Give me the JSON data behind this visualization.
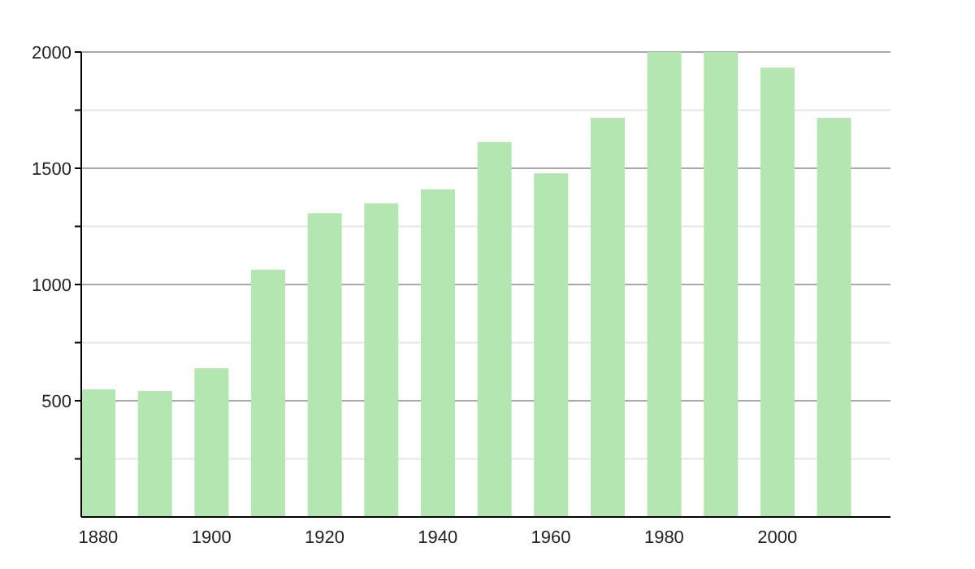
{
  "chart_data": {
    "type": "bar",
    "x": [
      1880,
      1890,
      1900,
      1910,
      1920,
      1930,
      1940,
      1950,
      1960,
      1970,
      1980,
      1990,
      2000,
      2010
    ],
    "values": [
      549,
      542,
      640,
      1064,
      1307,
      1349,
      1409,
      1613,
      1478,
      1717,
      2000,
      2000,
      1933,
      1717
    ],
    "color": "#b3e6b0",
    "xlim": [
      1877,
      2020
    ],
    "xticks": [
      1880,
      1900,
      1920,
      1940,
      1960,
      1980,
      2000
    ],
    "ylim": [
      0,
      2000
    ],
    "yticks": [
      {
        "value": 250,
        "label": null
      },
      500,
      {
        "value": 750,
        "label": null
      },
      1000,
      {
        "value": 1250,
        "label": null
      },
      1500,
      {
        "value": 1750,
        "label": null
      },
      2000
    ],
    "grid": "y"
  }
}
